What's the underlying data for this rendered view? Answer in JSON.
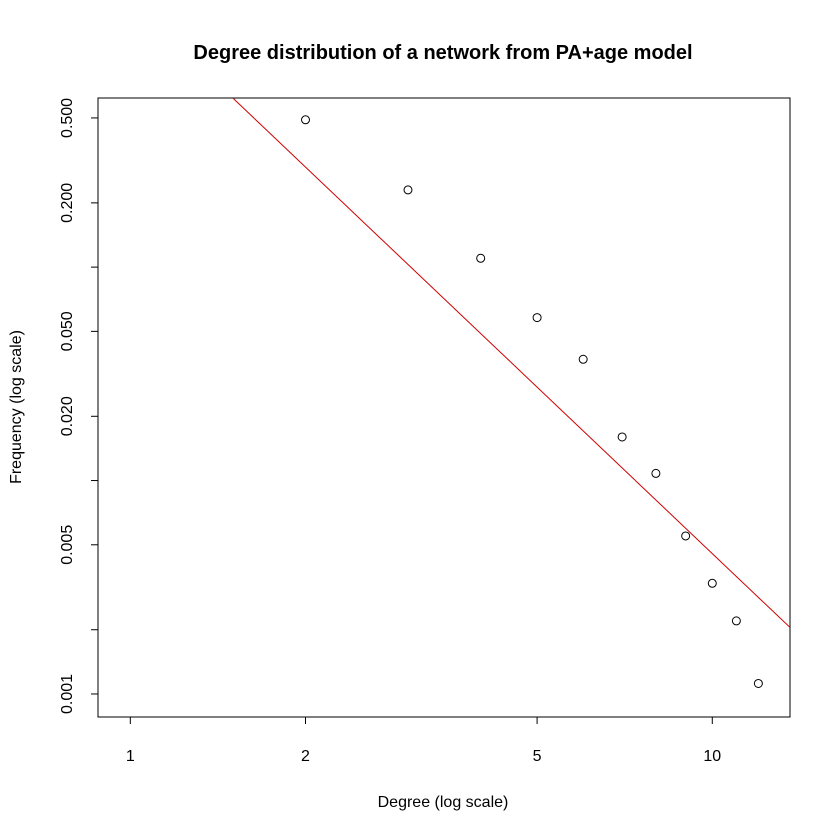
{
  "chart_data": {
    "type": "scatter",
    "title": "Degree distribution of a network from PA+age model",
    "xlabel": "Degree (log scale)",
    "ylabel": "Frequency (log scale)",
    "x_scale": "log",
    "y_scale": "log",
    "xlim": [
      0.88,
      13.6
    ],
    "ylim": [
      0.00078,
      0.62
    ],
    "x_ticks": [
      1,
      2,
      5,
      10
    ],
    "x_tick_labels": [
      "1",
      "2",
      "5",
      "10"
    ],
    "y_ticks": [
      0.001,
      0.002,
      0.005,
      0.01,
      0.02,
      0.05,
      0.1,
      0.2,
      0.5
    ],
    "y_tick_labels": [
      "0.001",
      "",
      "0.005",
      "",
      "0.020",
      "0.050",
      "",
      "0.200",
      "0.500"
    ],
    "grid": false,
    "series": [
      {
        "type": "scatter",
        "marker": "open-circle",
        "color": "#000000",
        "x": [
          2,
          3,
          4,
          5,
          6,
          7,
          8,
          9,
          10,
          11,
          12
        ],
        "y": [
          0.49,
          0.23,
          0.11,
          0.058,
          0.037,
          0.016,
          0.0108,
          0.0055,
          0.0033,
          0.0022,
          0.00112
        ]
      },
      {
        "type": "line",
        "color": "#cc0000",
        "x": [
          1.5,
          13.6
        ],
        "y": [
          0.62,
          0.00205
        ]
      }
    ]
  }
}
